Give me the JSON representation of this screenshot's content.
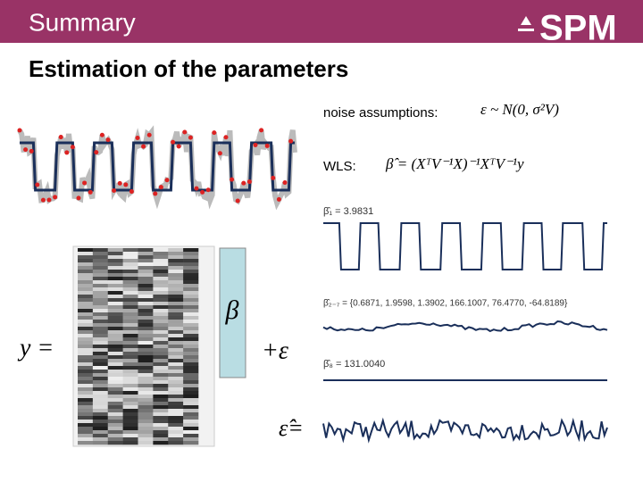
{
  "header": {
    "title": "Summary",
    "logo": "SPM"
  },
  "slide": {
    "title": "Estimation of the parameters",
    "noise_label": "noise assumptions:",
    "noise_equation": "ε ~ N(0, σ²V)",
    "wls_label": "WLS:",
    "wls_equation": "β̂ = (XᵀV⁻¹X)⁻¹XᵀV⁻¹y",
    "beta_1": "β̂₁ = 3.9831",
    "beta_2_7": "β̂₂₋₇ = {0.6871, 1.9598, 1.3902, 166.1007, 76.4770, -64.8189}",
    "beta_8": "β̂₈ = 131.0040",
    "y_label": "y =",
    "beta_symbol": "β",
    "error_term": "+ε",
    "residual_label": "ε̂="
  }
}
